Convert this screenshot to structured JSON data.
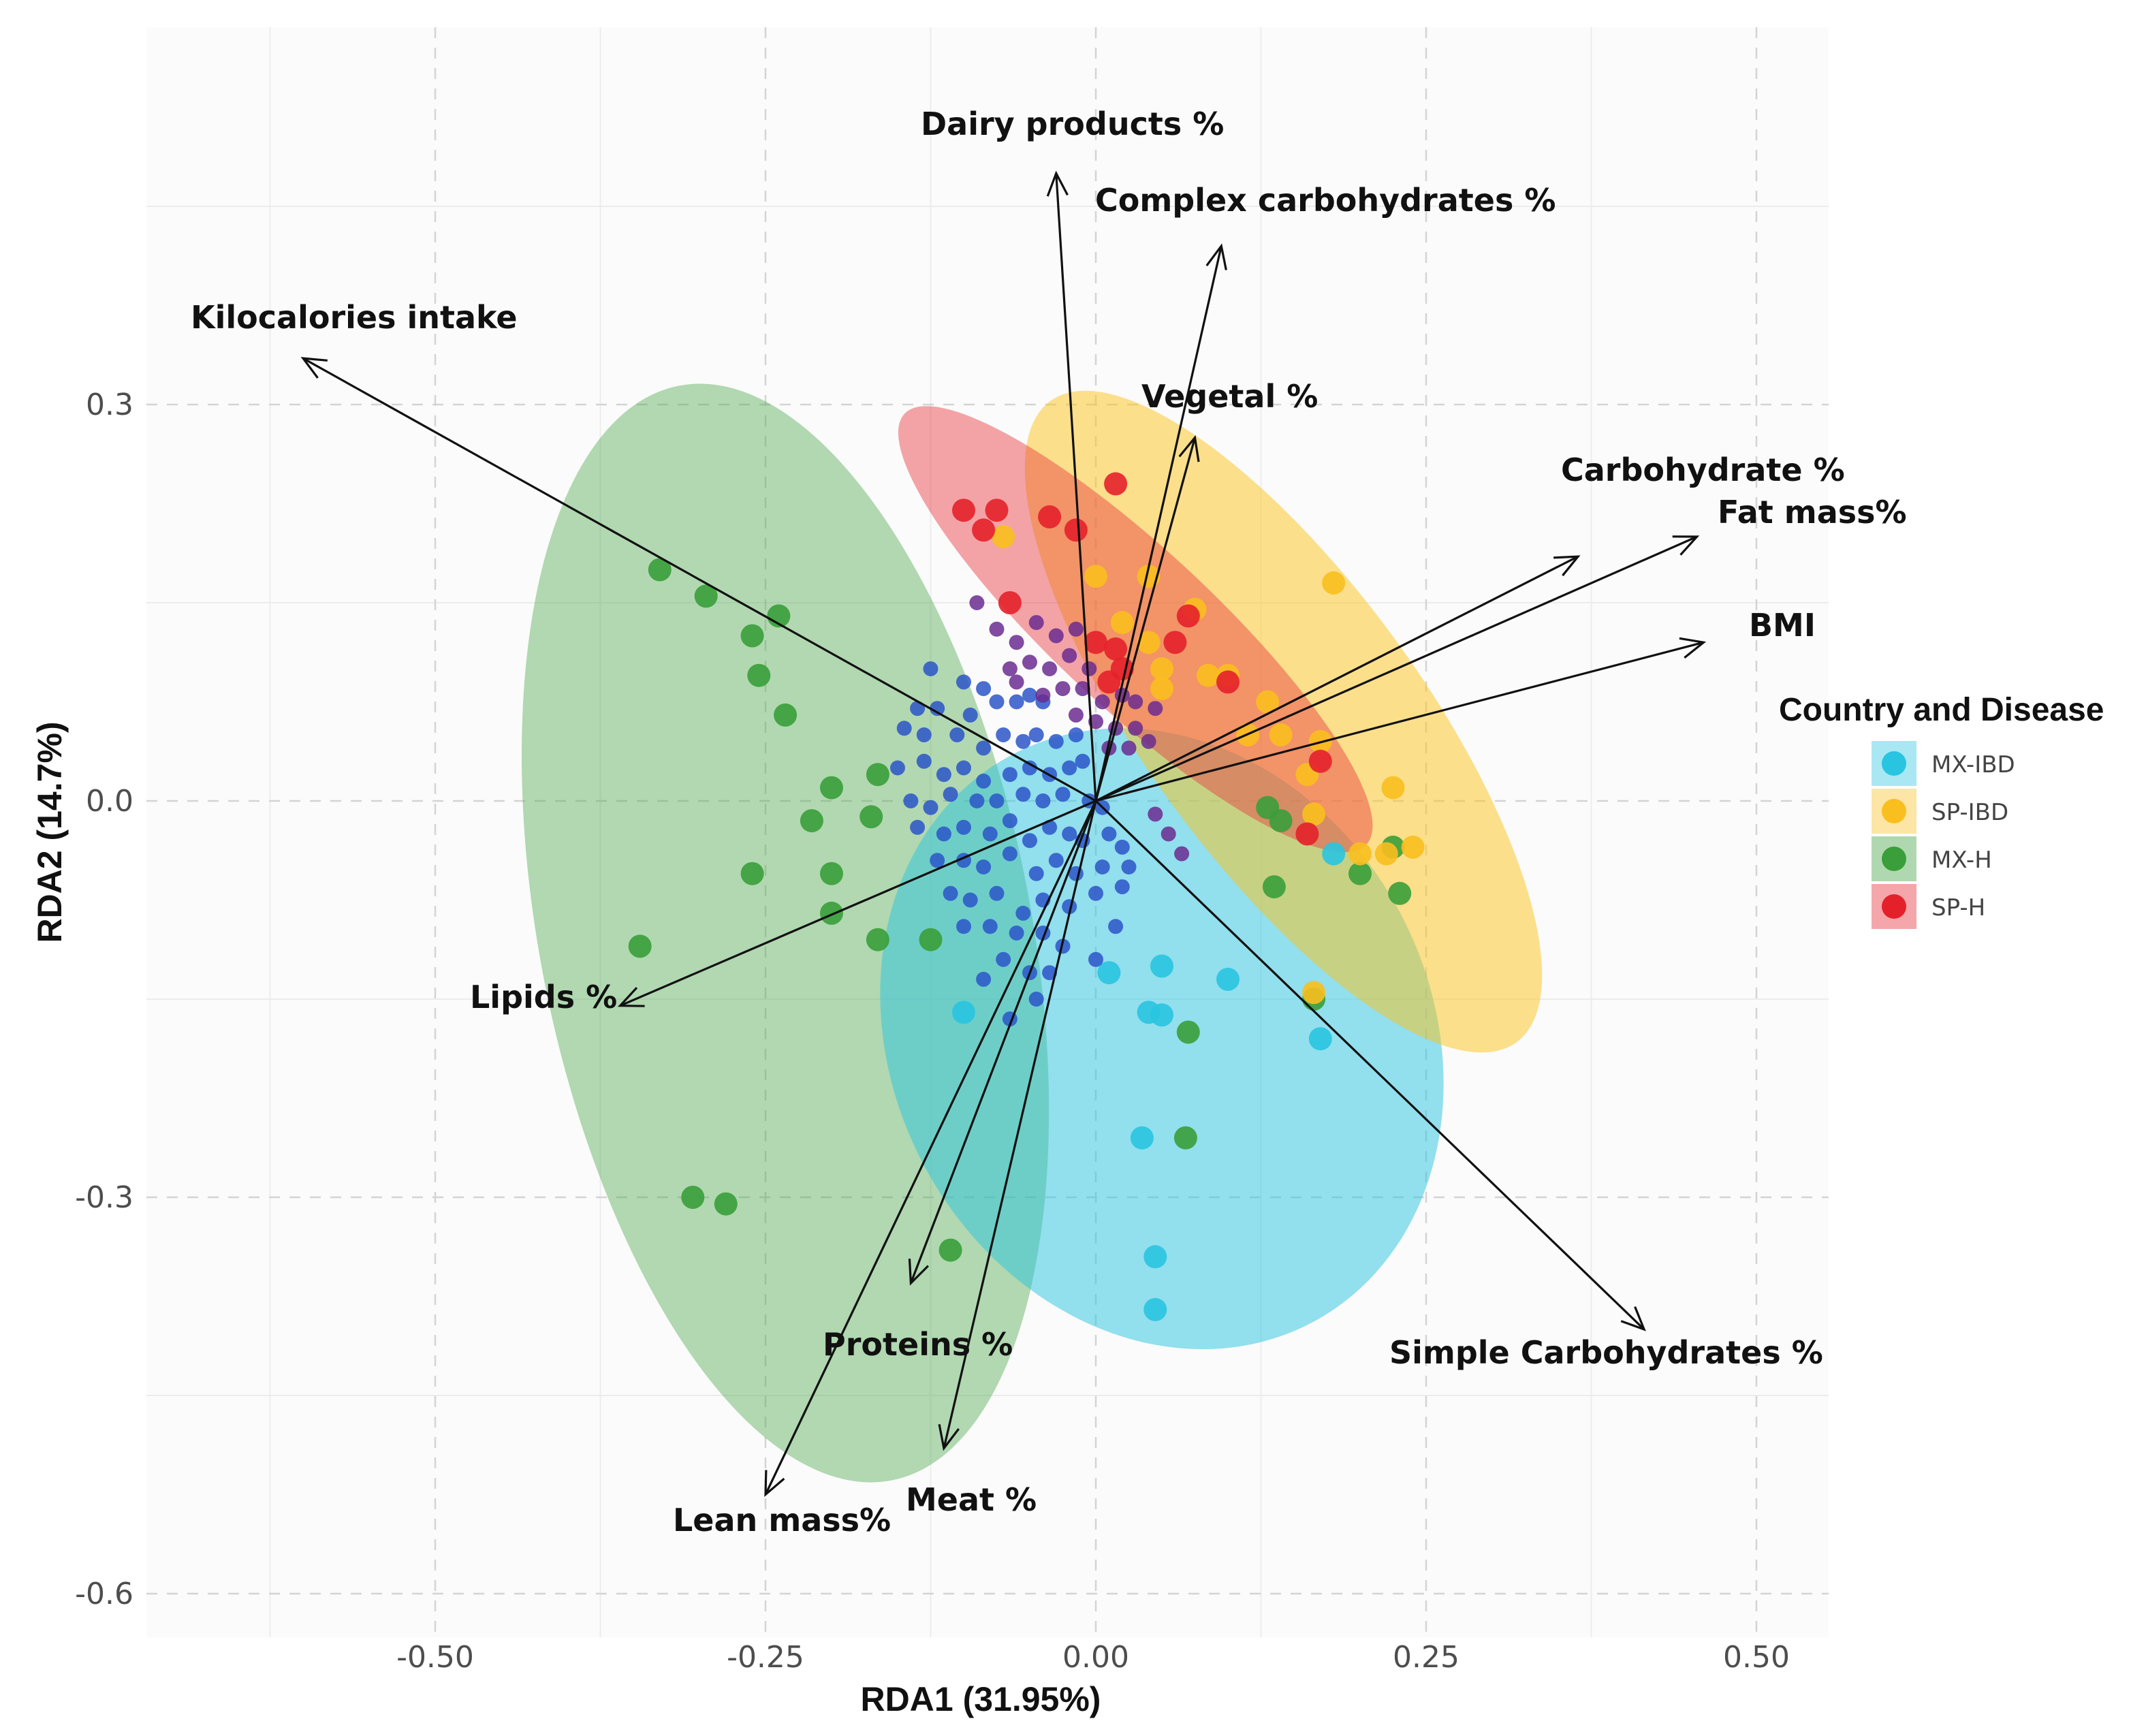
{
  "chart_data": {
    "type": "scatter",
    "subtype": "RDA biplot",
    "xlabel": "RDA1 (31.95%)",
    "ylabel": "RDA2 (14.7%)",
    "xlim": [
      -0.71,
      0.55
    ],
    "ylim": [
      -0.63,
      0.56
    ],
    "x_ticks": [
      -0.5,
      -0.25,
      0.0,
      0.25,
      0.5
    ],
    "x_tick_labels": [
      "-0.50",
      "-0.25",
      "0.00",
      "0.25",
      "0.50"
    ],
    "y_ticks": [
      0.3,
      0.0,
      -0.3,
      -0.6
    ],
    "y_tick_labels": [
      "0.3",
      "0.0",
      "-0.3",
      "-0.6"
    ],
    "grid": true,
    "legend": {
      "title": "Country and Disease",
      "position": "right",
      "entries": [
        {
          "label": "MX-IBD",
          "color": "#29c4e0"
        },
        {
          "label": "SP-IBD",
          "color": "#f9bf1e"
        },
        {
          "label": "MX-H",
          "color": "#3a9e3a"
        },
        {
          "label": "SP-H",
          "color": "#e4212a"
        }
      ]
    },
    "ellipses": [
      {
        "group": "MX-H",
        "color": "#4aa84a",
        "opacity": 0.42,
        "cx": -0.235,
        "cy": -0.1,
        "rx": 0.186,
        "ry": 0.422,
        "angle_deg": -11
      },
      {
        "group": "MX-IBD",
        "color": "#29c4e0",
        "opacity": 0.5,
        "cx": 0.05,
        "cy": -0.18,
        "rx": 0.204,
        "ry": 0.243,
        "angle_deg": -28
      },
      {
        "group": "SP-IBD",
        "color": "#fbc31c",
        "opacity": 0.5,
        "cx": 0.142,
        "cy": 0.06,
        "rx": 0.105,
        "ry": 0.3,
        "angle_deg": -36
      },
      {
        "group": "SP-H",
        "color": "#e8383f",
        "opacity": 0.45,
        "cx": 0.03,
        "cy": 0.13,
        "rx": 0.06,
        "ry": 0.239,
        "angle_deg": -47
      }
    ],
    "vectors": [
      {
        "label": "Kilocalories intake",
        "x": -0.6,
        "y": 0.335
      },
      {
        "label": "Dairy products %",
        "x": -0.03,
        "y": 0.475
      },
      {
        "label": "Complex carbohydrates %",
        "x": 0.095,
        "y": 0.42
      },
      {
        "label": "Vegetal %",
        "x": 0.075,
        "y": 0.275
      },
      {
        "label": "Carbohydrate %",
        "x": 0.365,
        "y": 0.185
      },
      {
        "label": "Fat mass%",
        "x": 0.455,
        "y": 0.2
      },
      {
        "label": "BMI",
        "x": 0.46,
        "y": 0.12
      },
      {
        "label": "Lipids %",
        "x": -0.36,
        "y": -0.155
      },
      {
        "label": "Simple Carbohydrates %",
        "x": 0.415,
        "y": -0.4
      },
      {
        "label": "Proteins %",
        "x": -0.14,
        "y": -0.365
      },
      {
        "label": "Meat  %",
        "x": -0.115,
        "y": -0.49
      },
      {
        "label": "Lean mass%",
        "x": -0.25,
        "y": -0.525
      }
    ],
    "series": [
      {
        "name": "MX-H",
        "color": "#3a9e3a",
        "size": "large",
        "points": [
          [
            -0.33,
            0.175
          ],
          [
            -0.295,
            0.155
          ],
          [
            -0.26,
            0.125
          ],
          [
            -0.24,
            0.14
          ],
          [
            -0.255,
            0.095
          ],
          [
            -0.235,
            0.065
          ],
          [
            -0.2,
            0.01
          ],
          [
            -0.165,
            0.02
          ],
          [
            -0.215,
            -0.015
          ],
          [
            -0.17,
            -0.012
          ],
          [
            -0.26,
            -0.055
          ],
          [
            -0.2,
            -0.055
          ],
          [
            -0.2,
            -0.085
          ],
          [
            -0.165,
            -0.105
          ],
          [
            -0.345,
            -0.11
          ],
          [
            -0.125,
            -0.105
          ],
          [
            -0.305,
            -0.3
          ],
          [
            -0.28,
            -0.305
          ],
          [
            -0.11,
            -0.34
          ],
          [
            0.068,
            -0.255
          ],
          [
            0.07,
            -0.175
          ],
          [
            0.135,
            -0.065
          ],
          [
            0.165,
            -0.15
          ],
          [
            0.23,
            -0.07
          ],
          [
            0.2,
            -0.055
          ],
          [
            0.225,
            -0.035
          ],
          [
            0.14,
            -0.015
          ],
          [
            0.13,
            -0.005
          ]
        ]
      },
      {
        "name": "MX-IBD",
        "color": "#29c4e0",
        "size": "large",
        "points": [
          [
            0.05,
            -0.125
          ],
          [
            0.01,
            -0.13
          ],
          [
            0.1,
            -0.135
          ],
          [
            0.04,
            -0.16
          ],
          [
            0.05,
            -0.162
          ],
          [
            0.035,
            -0.255
          ],
          [
            0.045,
            -0.345
          ],
          [
            0.045,
            -0.385
          ],
          [
            0.17,
            -0.18
          ],
          [
            -0.1,
            -0.16
          ],
          [
            0.18,
            -0.04
          ]
        ]
      },
      {
        "name": "SP-IBD",
        "color": "#f9bf1e",
        "size": "large",
        "points": [
          [
            -0.07,
            0.2
          ],
          [
            0.0,
            0.17
          ],
          [
            0.04,
            0.17
          ],
          [
            0.18,
            0.165
          ],
          [
            0.075,
            0.145
          ],
          [
            0.02,
            0.135
          ],
          [
            0.04,
            0.12
          ],
          [
            0.05,
            0.1
          ],
          [
            0.05,
            0.085
          ],
          [
            0.085,
            0.095
          ],
          [
            0.1,
            0.095
          ],
          [
            0.13,
            0.075
          ],
          [
            0.115,
            0.05
          ],
          [
            0.14,
            0.05
          ],
          [
            0.17,
            0.045
          ],
          [
            0.16,
            0.02
          ],
          [
            0.165,
            -0.01
          ],
          [
            0.2,
            -0.04
          ],
          [
            0.24,
            -0.035
          ],
          [
            0.225,
            0.01
          ],
          [
            0.22,
            -0.04
          ],
          [
            0.165,
            -0.145
          ]
        ]
      },
      {
        "name": "SP-H",
        "color": "#e4212a",
        "size": "large",
        "points": [
          [
            -0.1,
            0.22
          ],
          [
            -0.075,
            0.22
          ],
          [
            -0.085,
            0.205
          ],
          [
            -0.035,
            0.215
          ],
          [
            -0.015,
            0.205
          ],
          [
            0.015,
            0.24
          ],
          [
            -0.065,
            0.15
          ],
          [
            -0.0,
            0.12
          ],
          [
            0.015,
            0.115
          ],
          [
            0.01,
            0.09
          ],
          [
            0.02,
            0.1
          ],
          [
            0.07,
            0.14
          ],
          [
            0.06,
            0.12
          ],
          [
            0.1,
            0.09
          ],
          [
            0.17,
            0.03
          ],
          [
            0.16,
            -0.025
          ]
        ]
      },
      {
        "name": "MX-IBD (small)",
        "color": "#2b55c8",
        "size": "small",
        "points": [
          [
            -0.125,
            0.1
          ],
          [
            -0.1,
            0.09
          ],
          [
            -0.085,
            0.085
          ],
          [
            -0.135,
            0.07
          ],
          [
            -0.12,
            0.07
          ],
          [
            -0.095,
            0.065
          ],
          [
            -0.075,
            0.075
          ],
          [
            -0.06,
            0.075
          ],
          [
            -0.05,
            0.08
          ],
          [
            -0.04,
            0.075
          ],
          [
            -0.145,
            0.055
          ],
          [
            -0.13,
            0.05
          ],
          [
            -0.105,
            0.05
          ],
          [
            -0.085,
            0.04
          ],
          [
            -0.07,
            0.05
          ],
          [
            -0.055,
            0.045
          ],
          [
            -0.045,
            0.05
          ],
          [
            -0.03,
            0.045
          ],
          [
            -0.015,
            0.05
          ],
          [
            -0.15,
            0.025
          ],
          [
            -0.13,
            0.03
          ],
          [
            -0.115,
            0.02
          ],
          [
            -0.1,
            0.025
          ],
          [
            -0.085,
            0.015
          ],
          [
            -0.065,
            0.02
          ],
          [
            -0.05,
            0.025
          ],
          [
            -0.035,
            0.02
          ],
          [
            -0.02,
            0.025
          ],
          [
            -0.01,
            0.03
          ],
          [
            -0.14,
            0.0
          ],
          [
            -0.125,
            -0.005
          ],
          [
            -0.11,
            0.005
          ],
          [
            -0.09,
            0.0
          ],
          [
            -0.075,
            0.0
          ],
          [
            -0.055,
            0.005
          ],
          [
            -0.04,
            0.0
          ],
          [
            -0.025,
            0.005
          ],
          [
            -0.005,
            0.0
          ],
          [
            0.005,
            -0.005
          ],
          [
            -0.135,
            -0.02
          ],
          [
            -0.115,
            -0.025
          ],
          [
            -0.1,
            -0.02
          ],
          [
            -0.08,
            -0.025
          ],
          [
            -0.065,
            -0.015
          ],
          [
            -0.05,
            -0.03
          ],
          [
            -0.035,
            -0.02
          ],
          [
            -0.02,
            -0.025
          ],
          [
            -0.01,
            -0.03
          ],
          [
            0.01,
            -0.025
          ],
          [
            0.02,
            -0.035
          ],
          [
            -0.12,
            -0.045
          ],
          [
            -0.1,
            -0.045
          ],
          [
            -0.085,
            -0.05
          ],
          [
            -0.065,
            -0.04
          ],
          [
            -0.045,
            -0.055
          ],
          [
            -0.03,
            -0.045
          ],
          [
            -0.015,
            -0.055
          ],
          [
            0.005,
            -0.05
          ],
          [
            0.025,
            -0.05
          ],
          [
            -0.11,
            -0.07
          ],
          [
            -0.095,
            -0.075
          ],
          [
            -0.075,
            -0.07
          ],
          [
            -0.055,
            -0.085
          ],
          [
            -0.04,
            -0.075
          ],
          [
            -0.02,
            -0.08
          ],
          [
            0.0,
            -0.07
          ],
          [
            0.02,
            -0.065
          ],
          [
            -0.1,
            -0.095
          ],
          [
            -0.08,
            -0.095
          ],
          [
            -0.06,
            -0.1
          ],
          [
            -0.04,
            -0.1
          ],
          [
            -0.025,
            -0.11
          ],
          [
            -0.07,
            -0.12
          ],
          [
            -0.05,
            -0.13
          ],
          [
            -0.035,
            -0.13
          ],
          [
            -0.085,
            -0.135
          ],
          [
            -0.045,
            -0.15
          ],
          [
            -0.065,
            -0.165
          ],
          [
            0.0,
            -0.12
          ],
          [
            0.015,
            -0.095
          ]
        ]
      },
      {
        "name": "SP (small)",
        "color": "#6a2c8f",
        "size": "small",
        "points": [
          [
            -0.09,
            0.15
          ],
          [
            -0.075,
            0.13
          ],
          [
            -0.06,
            0.12
          ],
          [
            -0.045,
            0.135
          ],
          [
            -0.03,
            0.125
          ],
          [
            -0.015,
            0.13
          ],
          [
            -0.05,
            0.105
          ],
          [
            -0.035,
            0.1
          ],
          [
            -0.02,
            0.11
          ],
          [
            -0.005,
            0.1
          ],
          [
            -0.06,
            0.09
          ],
          [
            -0.04,
            0.08
          ],
          [
            -0.025,
            0.085
          ],
          [
            -0.01,
            0.085
          ],
          [
            0.005,
            0.075
          ],
          [
            0.02,
            0.08
          ],
          [
            0.03,
            0.075
          ],
          [
            0.045,
            0.07
          ],
          [
            -0.015,
            0.065
          ],
          [
            0.0,
            0.06
          ],
          [
            0.015,
            0.055
          ],
          [
            0.03,
            0.055
          ],
          [
            0.04,
            0.045
          ],
          [
            0.01,
            0.04
          ],
          [
            0.025,
            0.04
          ],
          [
            0.045,
            -0.01
          ],
          [
            0.055,
            -0.025
          ],
          [
            0.065,
            -0.04
          ],
          [
            -0.065,
            0.1
          ]
        ]
      }
    ]
  }
}
